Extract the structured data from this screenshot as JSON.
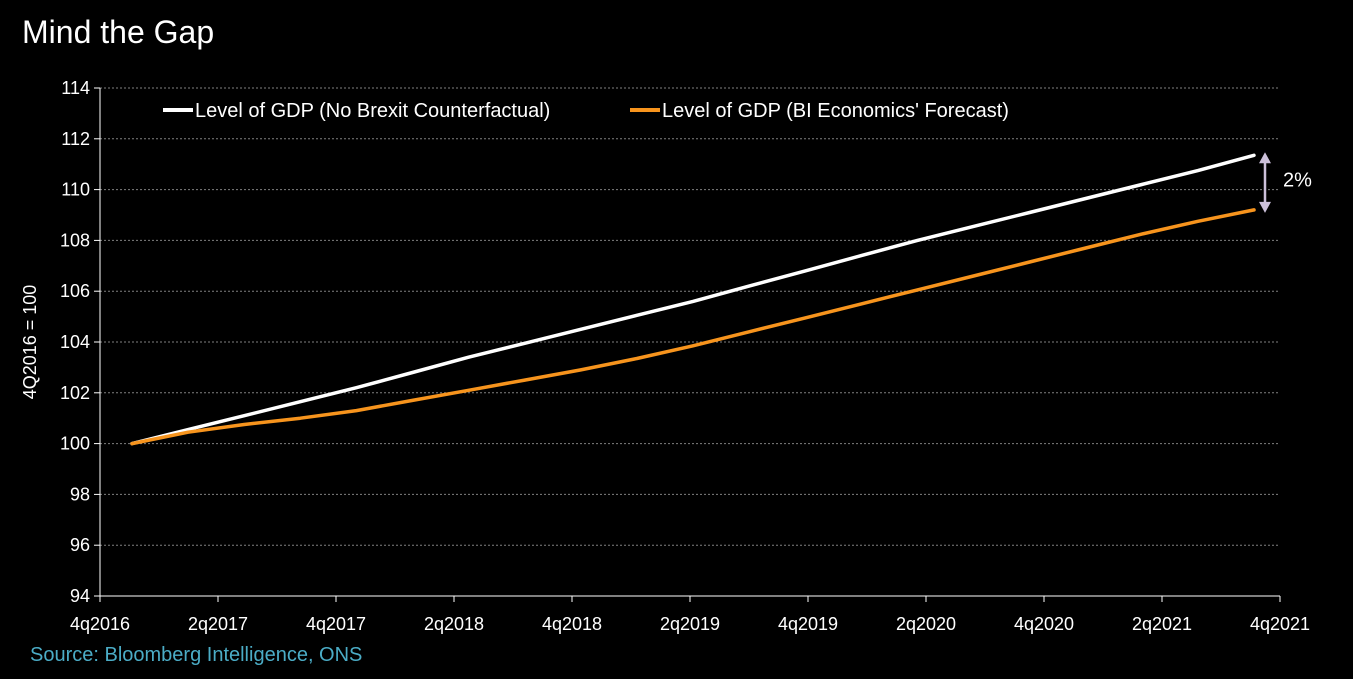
{
  "title": "Mind the Gap",
  "source": "Source: Bloomberg Intelligence, ONS",
  "colors": {
    "background": "#000000",
    "series_white": "#ffffff",
    "series_orange": "#f7941d",
    "source_text": "#4bacc6",
    "gap_arrow": "#ccc0da",
    "gridline": "#808080"
  },
  "chart_data": {
    "type": "line",
    "ylabel": "4Q2016 = 100",
    "ylim": [
      94,
      114
    ],
    "yticks": [
      94,
      96,
      98,
      100,
      102,
      104,
      106,
      108,
      110,
      112,
      114
    ],
    "xlabels": [
      "4q2016",
      "2q2017",
      "4q2017",
      "2q2018",
      "4q2018",
      "2q2019",
      "4q2019",
      "2q2020",
      "4q2020",
      "2q2021",
      "4q2021"
    ],
    "grid": "horizontal",
    "legend_position": "top",
    "x": [
      "4q2016",
      "1q2017",
      "2q2017",
      "3q2017",
      "4q2017",
      "1q2018",
      "2q2018",
      "3q2018",
      "4q2018",
      "1q2019",
      "2q2019",
      "3q2019",
      "4q2019",
      "1q2020",
      "2q2020",
      "3q2020",
      "4q2020",
      "1q2021",
      "2q2021",
      "3q2021",
      "4q2021"
    ],
    "series": [
      {
        "name": "Level of GDP (No Brexit Counterfactual)",
        "color": "#ffffff",
        "values": [
          100.0,
          100.55,
          101.1,
          101.65,
          102.2,
          102.8,
          103.4,
          103.95,
          104.5,
          105.05,
          105.6,
          106.2,
          106.8,
          107.4,
          108.0,
          108.55,
          109.1,
          109.65,
          110.2,
          110.75,
          111.35
        ]
      },
      {
        "name": "Level of GDP (BI Economics' Forecast)",
        "color": "#f7941d",
        "values": [
          100.0,
          100.45,
          100.75,
          101.0,
          101.3,
          101.7,
          102.1,
          102.5,
          102.9,
          103.35,
          103.85,
          104.4,
          104.95,
          105.5,
          106.05,
          106.6,
          107.15,
          107.7,
          108.25,
          108.75,
          109.2
        ]
      }
    ],
    "annotations": [
      {
        "text": "2%",
        "type": "double-arrow",
        "from": 111.35,
        "to": 109.2
      }
    ]
  }
}
